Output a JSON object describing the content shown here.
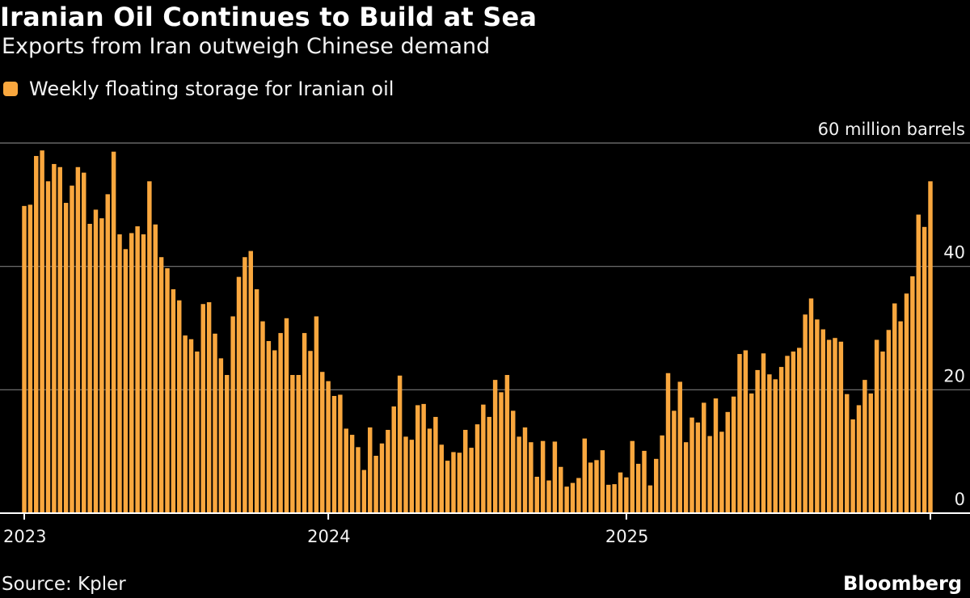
{
  "header": {
    "title": "Iranian Oil Continues to Build at Sea",
    "subtitle": "Exports from Iran outweigh Chinese demand"
  },
  "footer": {
    "source": "Source: Kpler",
    "brand": "Bloomberg"
  },
  "colors": {
    "bar": "#F9A73E",
    "grid": "#7a7a7a",
    "axis": "#ffffff",
    "background": "#000000"
  },
  "chart_data": {
    "type": "bar",
    "title": "Iranian Oil Continues to Build at Sea",
    "subtitle": "Exports from Iran outweigh Chinese demand",
    "legend": [
      "Weekly floating storage for Iranian oil"
    ],
    "legend_position": "top-left",
    "ylabel": "60 million barrels",
    "ylim": [
      0,
      60
    ],
    "yticks": [
      0,
      20,
      40,
      60
    ],
    "ytick_labels": [
      "0",
      "20",
      "40",
      "60 million barrels"
    ],
    "grid": true,
    "x_start": "2023-01",
    "x_period": "weekly",
    "xticks": [
      {
        "label": "2023",
        "index": 0
      },
      {
        "label": "2024",
        "index": 51
      },
      {
        "label": "2025",
        "index": 101
      }
    ],
    "series": [
      {
        "name": "Weekly floating storage for Iranian oil",
        "values": [
          49.8,
          50,
          57.9,
          58.8,
          53.8,
          56.6,
          56.1,
          50.3,
          53.1,
          56.1,
          55.2,
          46.9,
          49.2,
          47.8,
          51.7,
          58.6,
          45.2,
          42.8,
          45.4,
          46.5,
          45.2,
          53.8,
          46.8,
          41.5,
          39.7,
          36.3,
          34.5,
          28.8,
          28.2,
          26.2,
          33.9,
          34.2,
          29.1,
          25.1,
          22.4,
          31.9,
          38.3,
          41.5,
          42.5,
          36.3,
          31.1,
          27.9,
          26.4,
          29.2,
          31.6,
          22.4,
          22.4,
          29.2,
          26.3,
          31.9,
          22.9,
          21.4,
          19,
          19.2,
          13.7,
          12.7,
          10.7,
          7,
          13.9,
          9.3,
          11.3,
          13.5,
          17.3,
          22.3,
          12.4,
          11.9,
          17.5,
          17.7,
          13.7,
          15.6,
          11.1,
          8.5,
          9.9,
          9.8,
          13.5,
          10.6,
          14.4,
          17.6,
          15.6,
          21.6,
          19.6,
          22.4,
          16.6,
          12.4,
          13.9,
          11.5,
          5.9,
          11.7,
          5.3,
          11.6,
          7.5,
          4.3,
          4.9,
          5.7,
          12.1,
          8.2,
          8.6,
          10.2,
          4.6,
          4.7,
          6.6,
          5.8,
          11.7,
          8,
          10.1,
          4.5,
          8.8,
          12.6,
          22.7,
          16.6,
          21.3,
          11.5,
          15.5,
          14.7,
          17.9,
          12.5,
          18.6,
          13.2,
          16.4,
          18.9,
          25.8,
          26.4,
          19.4,
          23.2,
          25.9,
          22.5,
          21.7,
          23.7,
          25.5,
          26.2,
          26.8,
          32.2,
          34.8,
          31.4,
          29.8,
          28.1,
          28.4,
          27.8,
          19.3,
          15.2,
          17.5,
          21.6,
          19.4,
          28.1,
          26.2,
          29.7,
          34,
          31.1,
          35.6,
          38.4,
          48.4,
          46.4,
          53.8
        ]
      }
    ]
  }
}
